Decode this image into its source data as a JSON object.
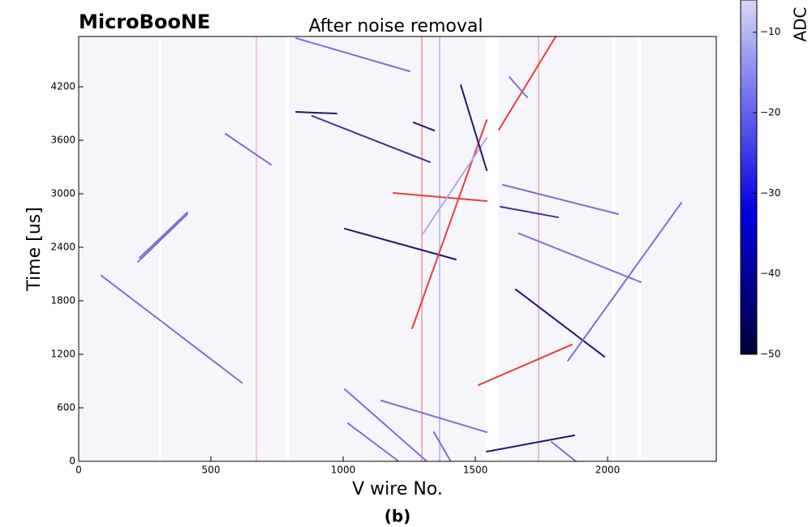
{
  "chart_data": {
    "type": "line",
    "experiment": "MicroBooNE",
    "title": "After noise removal",
    "xlabel": "V wire No.",
    "ylabel": "Time [us]",
    "caption": "(b)",
    "colorbar_label": "ADC",
    "xlim": [
      0,
      2411
    ],
    "ylim": [
      0,
      4764
    ],
    "xticks": [
      0,
      500,
      1000,
      1500,
      2000
    ],
    "yticks": [
      0,
      600,
      1200,
      1800,
      2400,
      3000,
      3600,
      4200
    ],
    "colorbar_lim": [
      -50,
      -6
    ],
    "colorbar_ticks": [
      {
        "value": -10,
        "label": "−10"
      },
      {
        "value": -20,
        "label": "−20"
      },
      {
        "value": -30,
        "label": "−30"
      },
      {
        "value": -40,
        "label": "−40"
      },
      {
        "value": -50,
        "label": "−50"
      }
    ],
    "series": [
      {
        "color": "#7b6fd6",
        "x": [
          86,
          617
        ],
        "values": [
          2082,
          882
        ]
      },
      {
        "color": "#7b6fd6",
        "x": [
          555,
          727
        ],
        "values": [
          3673,
          3327
        ]
      },
      {
        "color": "#7b6fd6",
        "x": [
          230,
          411
        ],
        "values": [
          2282,
          2791
        ]
      },
      {
        "color": "#7b6fd6",
        "x": [
          224,
          411
        ],
        "values": [
          2236,
          2773
        ]
      },
      {
        "color": "#1a1a6e",
        "x": [
          822,
          975
        ],
        "values": [
          3918,
          3900
        ]
      },
      {
        "color": "#3a3490",
        "x": [
          883,
          1328
        ],
        "values": [
          3873,
          3355
        ]
      },
      {
        "color": "#7b6fd6",
        "x": [
          822,
          1252
        ],
        "values": [
          4745,
          4373
        ]
      },
      {
        "color": "#1a1a6e",
        "x": [
          1006,
          1426
        ],
        "values": [
          2609,
          2264
        ]
      },
      {
        "color": "#e04040",
        "x": [
          1190,
          1543
        ],
        "values": [
          3009,
          2918
        ]
      },
      {
        "color": "#7b6fd6",
        "x": [
          1604,
          2040
        ],
        "values": [
          3100,
          2773
        ]
      },
      {
        "color": "#3a3490",
        "x": [
          1595,
          1813
        ],
        "values": [
          2855,
          2736
        ]
      },
      {
        "color": "#7b6fd6",
        "x": [
          1665,
          2126
        ],
        "values": [
          2555,
          2009
        ]
      },
      {
        "color": "#1a1a6e",
        "x": [
          1653,
          1988
        ],
        "values": [
          1927,
          1173
        ]
      },
      {
        "color": "#7b6fd6",
        "x": [
          1850,
          2279
        ],
        "values": [
          1127,
          2900
        ]
      },
      {
        "color": "#e04040",
        "x": [
          1512,
          1865
        ],
        "values": [
          855,
          1309
        ]
      },
      {
        "color": "#e04040",
        "x": [
          1261,
          1543
        ],
        "values": [
          1491,
          3827
        ]
      },
      {
        "color": "#b0a8e6",
        "x": [
          1298,
          1543
        ],
        "values": [
          2536,
          3627
        ]
      },
      {
        "color": "#e04040",
        "x": [
          1589,
          1804
        ],
        "values": [
          3718,
          4764
        ]
      },
      {
        "color": "#1a1a6e",
        "x": [
          1445,
          1543
        ],
        "values": [
          4218,
          3264
        ]
      },
      {
        "color": "#7b6fd6",
        "x": [
          1006,
          1313
        ],
        "values": [
          809,
          9
        ]
      },
      {
        "color": "#7b6fd6",
        "x": [
          1144,
          1543
        ],
        "values": [
          682,
          327
        ]
      },
      {
        "color": "#7b6fd6",
        "x": [
          1018,
          1206
        ],
        "values": [
          427,
          9
        ]
      },
      {
        "color": "#7b6fd6",
        "x": [
          1343,
          1405
        ],
        "values": [
          327,
          9
        ]
      },
      {
        "color": "#1a1a6e",
        "x": [
          1543,
          1874
        ],
        "values": [
          109,
          291
        ]
      },
      {
        "color": "#7b6fd6",
        "x": [
          1788,
          1880
        ],
        "values": [
          218,
          0
        ]
      },
      {
        "color": "#7b6fd6",
        "x": [
          1629,
          1696
        ],
        "values": [
          4309,
          4082
        ]
      },
      {
        "color": "#1a1a6e",
        "x": [
          1267,
          1344
        ],
        "values": [
          3800,
          3710
        ]
      }
    ]
  }
}
